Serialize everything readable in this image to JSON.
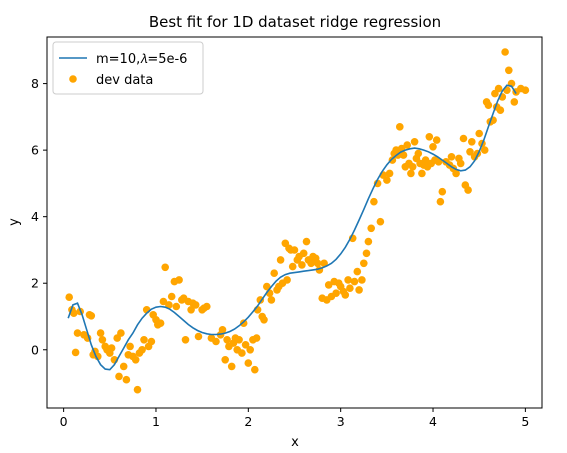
{
  "chart_data": {
    "type": "scatter",
    "title": "Best fit for 1D dataset ridge regression",
    "xlabel": "x",
    "ylabel": "y",
    "xlim": [
      -0.18,
      5.18
    ],
    "ylim": [
      -1.75,
      9.4
    ],
    "xticks": [
      0,
      1,
      2,
      3,
      4,
      5
    ],
    "yticks": [
      0,
      2,
      4,
      6,
      8
    ],
    "grid": false,
    "legend_position": "top-left",
    "colors": {
      "line": "#1f77b4",
      "points": "#ffa500"
    },
    "series": [
      {
        "name": "m=10,𝜆=5e-6",
        "kind": "line",
        "x": [
          0.05,
          0.1,
          0.15,
          0.2,
          0.25,
          0.3,
          0.35,
          0.4,
          0.45,
          0.5,
          0.55,
          0.6,
          0.65,
          0.7,
          0.75,
          0.8,
          0.85,
          0.9,
          0.95,
          1.0,
          1.05,
          1.1,
          1.15,
          1.2,
          1.25,
          1.3,
          1.35,
          1.4,
          1.45,
          1.5,
          1.55,
          1.6,
          1.65,
          1.7,
          1.75,
          1.8,
          1.85,
          1.9,
          1.95,
          2.0,
          2.05,
          2.1,
          2.15,
          2.2,
          2.25,
          2.3,
          2.35,
          2.4,
          2.45,
          2.5,
          2.55,
          2.6,
          2.65,
          2.7,
          2.75,
          2.8,
          2.85,
          2.9,
          2.95,
          3.0,
          3.05,
          3.1,
          3.15,
          3.2,
          3.25,
          3.3,
          3.35,
          3.4,
          3.45,
          3.5,
          3.55,
          3.6,
          3.65,
          3.7,
          3.75,
          3.8,
          3.85,
          3.9,
          3.95,
          4.0,
          4.05,
          4.1,
          4.15,
          4.2,
          4.25,
          4.3,
          4.35,
          4.4,
          4.45,
          4.5,
          4.55,
          4.6,
          4.65,
          4.7,
          4.75,
          4.8,
          4.85,
          4.9
        ],
        "y": [
          0.95,
          1.35,
          1.4,
          1.05,
          0.6,
          0.15,
          -0.2,
          -0.45,
          -0.58,
          -0.6,
          -0.45,
          -0.2,
          0.05,
          0.3,
          0.5,
          0.75,
          0.95,
          1.1,
          1.22,
          1.28,
          1.3,
          1.28,
          1.22,
          1.12,
          1.0,
          0.88,
          0.76,
          0.66,
          0.58,
          0.52,
          0.48,
          0.46,
          0.46,
          0.47,
          0.5,
          0.55,
          0.62,
          0.72,
          0.84,
          0.98,
          1.14,
          1.32,
          1.52,
          1.72,
          1.9,
          2.06,
          2.18,
          2.26,
          2.3,
          2.32,
          2.34,
          2.36,
          2.38,
          2.4,
          2.42,
          2.46,
          2.52,
          2.6,
          2.72,
          2.88,
          3.08,
          3.32,
          3.6,
          3.9,
          4.22,
          4.54,
          4.84,
          5.12,
          5.36,
          5.56,
          5.72,
          5.84,
          5.94,
          6.0,
          6.04,
          6.06,
          6.04,
          6.0,
          5.95,
          5.88,
          5.8,
          5.7,
          5.6,
          5.5,
          5.42,
          5.38,
          5.4,
          5.5,
          5.68,
          5.96,
          6.3,
          6.7,
          7.1,
          7.48,
          7.78,
          7.95,
          7.92,
          7.7
        ]
      },
      {
        "name": "dev data",
        "kind": "scatter",
        "points": [
          [
            0.06,
            1.58
          ],
          [
            0.09,
            1.2
          ],
          [
            0.11,
            1.1
          ],
          [
            0.13,
            -0.08
          ],
          [
            0.15,
            0.5
          ],
          [
            0.18,
            1.15
          ],
          [
            0.22,
            0.45
          ],
          [
            0.26,
            0.35
          ],
          [
            0.28,
            1.05
          ],
          [
            0.3,
            1.02
          ],
          [
            0.32,
            -0.15
          ],
          [
            0.34,
            -0.05
          ],
          [
            0.37,
            -0.2
          ],
          [
            0.4,
            0.5
          ],
          [
            0.42,
            0.3
          ],
          [
            0.45,
            0.1
          ],
          [
            0.47,
            0.0
          ],
          [
            0.5,
            -0.1
          ],
          [
            0.52,
            0.05
          ],
          [
            0.55,
            -0.3
          ],
          [
            0.58,
            0.35
          ],
          [
            0.6,
            -0.8
          ],
          [
            0.62,
            0.5
          ],
          [
            0.65,
            -0.5
          ],
          [
            0.68,
            -0.9
          ],
          [
            0.7,
            -0.15
          ],
          [
            0.72,
            0.1
          ],
          [
            0.75,
            -0.2
          ],
          [
            0.78,
            -0.3
          ],
          [
            0.8,
            -1.2
          ],
          [
            0.82,
            -0.1
          ],
          [
            0.85,
            0.0
          ],
          [
            0.87,
            0.3
          ],
          [
            0.9,
            1.2
          ],
          [
            0.92,
            0.1
          ],
          [
            0.95,
            0.25
          ],
          [
            0.97,
            1.05
          ],
          [
            1.0,
            0.9
          ],
          [
            1.02,
            0.75
          ],
          [
            1.05,
            0.8
          ],
          [
            1.08,
            1.45
          ],
          [
            1.1,
            2.48
          ],
          [
            1.14,
            1.35
          ],
          [
            1.17,
            1.6
          ],
          [
            1.2,
            2.05
          ],
          [
            1.22,
            1.3
          ],
          [
            1.25,
            2.1
          ],
          [
            1.28,
            1.5
          ],
          [
            1.3,
            1.55
          ],
          [
            1.32,
            0.3
          ],
          [
            1.35,
            1.45
          ],
          [
            1.38,
            1.2
          ],
          [
            1.4,
            1.4
          ],
          [
            1.43,
            1.35
          ],
          [
            1.46,
            0.4
          ],
          [
            1.5,
            1.2
          ],
          [
            1.52,
            1.25
          ],
          [
            1.55,
            1.3
          ],
          [
            1.6,
            0.35
          ],
          [
            1.65,
            0.25
          ],
          [
            1.7,
            0.45
          ],
          [
            1.72,
            0.6
          ],
          [
            1.75,
            -0.3
          ],
          [
            1.77,
            0.3
          ],
          [
            1.79,
            0.1
          ],
          [
            1.82,
            -0.5
          ],
          [
            1.84,
            0.2
          ],
          [
            1.86,
            0.35
          ],
          [
            1.88,
            0.0
          ],
          [
            1.9,
            0.3
          ],
          [
            1.93,
            -0.1
          ],
          [
            1.95,
            0.8
          ],
          [
            1.97,
            0.15
          ],
          [
            2.0,
            -0.4
          ],
          [
            2.02,
            0.0
          ],
          [
            2.05,
            0.3
          ],
          [
            2.07,
            -0.6
          ],
          [
            2.09,
            0.35
          ],
          [
            2.1,
            1.2
          ],
          [
            2.13,
            1.5
          ],
          [
            2.15,
            1.0
          ],
          [
            2.17,
            0.9
          ],
          [
            2.2,
            1.9
          ],
          [
            2.23,
            1.7
          ],
          [
            2.25,
            1.5
          ],
          [
            2.28,
            2.3
          ],
          [
            2.31,
            1.8
          ],
          [
            2.33,
            1.9
          ],
          [
            2.35,
            2.7
          ],
          [
            2.37,
            2.0
          ],
          [
            2.4,
            3.2
          ],
          [
            2.42,
            2.1
          ],
          [
            2.44,
            3.05
          ],
          [
            2.46,
            3.0
          ],
          [
            2.48,
            2.5
          ],
          [
            2.5,
            3.0
          ],
          [
            2.53,
            2.7
          ],
          [
            2.55,
            2.8
          ],
          [
            2.58,
            2.55
          ],
          [
            2.6,
            2.9
          ],
          [
            2.63,
            3.25
          ],
          [
            2.65,
            2.7
          ],
          [
            2.68,
            2.6
          ],
          [
            2.7,
            2.8
          ],
          [
            2.73,
            2.75
          ],
          [
            2.75,
            2.6
          ],
          [
            2.77,
            2.4
          ],
          [
            2.8,
            1.55
          ],
          [
            2.82,
            2.6
          ],
          [
            2.85,
            1.5
          ],
          [
            2.87,
            1.95
          ],
          [
            2.9,
            1.6
          ],
          [
            2.93,
            2.05
          ],
          [
            2.95,
            1.7
          ],
          [
            2.98,
            2.0
          ],
          [
            3.0,
            1.9
          ],
          [
            3.03,
            1.75
          ],
          [
            3.05,
            1.65
          ],
          [
            3.08,
            2.1
          ],
          [
            3.1,
            1.85
          ],
          [
            3.13,
            3.35
          ],
          [
            3.15,
            2.05
          ],
          [
            3.18,
            2.35
          ],
          [
            3.2,
            1.8
          ],
          [
            3.23,
            2.1
          ],
          [
            3.25,
            2.6
          ],
          [
            3.28,
            2.9
          ],
          [
            3.3,
            3.25
          ],
          [
            3.33,
            3.65
          ],
          [
            3.36,
            4.45
          ],
          [
            3.4,
            5.0
          ],
          [
            3.43,
            3.85
          ],
          [
            3.46,
            5.25
          ],
          [
            3.5,
            5.1
          ],
          [
            3.53,
            5.3
          ],
          [
            3.56,
            5.7
          ],
          [
            3.58,
            5.9
          ],
          [
            3.6,
            6.0
          ],
          [
            3.62,
            5.85
          ],
          [
            3.64,
            6.7
          ],
          [
            3.66,
            6.05
          ],
          [
            3.68,
            5.85
          ],
          [
            3.7,
            5.5
          ],
          [
            3.72,
            6.15
          ],
          [
            3.74,
            5.6
          ],
          [
            3.76,
            5.3
          ],
          [
            3.78,
            5.5
          ],
          [
            3.8,
            6.25
          ],
          [
            3.82,
            5.75
          ],
          [
            3.84,
            5.9
          ],
          [
            3.86,
            5.6
          ],
          [
            3.88,
            5.3
          ],
          [
            3.9,
            5.55
          ],
          [
            3.92,
            5.7
          ],
          [
            3.94,
            5.5
          ],
          [
            3.96,
            6.4
          ],
          [
            3.98,
            5.6
          ],
          [
            4.0,
            6.1
          ],
          [
            4.02,
            5.7
          ],
          [
            4.04,
            6.3
          ],
          [
            4.06,
            5.65
          ],
          [
            4.08,
            4.45
          ],
          [
            4.1,
            4.75
          ],
          [
            4.14,
            5.65
          ],
          [
            4.18,
            5.55
          ],
          [
            4.2,
            5.8
          ],
          [
            4.22,
            5.45
          ],
          [
            4.25,
            5.3
          ],
          [
            4.28,
            5.75
          ],
          [
            4.3,
            5.6
          ],
          [
            4.33,
            6.35
          ],
          [
            4.35,
            4.95
          ],
          [
            4.38,
            4.8
          ],
          [
            4.4,
            5.95
          ],
          [
            4.42,
            6.25
          ],
          [
            4.45,
            5.8
          ],
          [
            4.48,
            5.9
          ],
          [
            4.5,
            6.5
          ],
          [
            4.53,
            6.2
          ],
          [
            4.56,
            6.0
          ],
          [
            4.58,
            7.45
          ],
          [
            4.6,
            7.35
          ],
          [
            4.62,
            6.85
          ],
          [
            4.65,
            6.9
          ],
          [
            4.67,
            7.7
          ],
          [
            4.69,
            7.3
          ],
          [
            4.71,
            7.85
          ],
          [
            4.73,
            7.2
          ],
          [
            4.75,
            7.6
          ],
          [
            4.78,
            8.95
          ],
          [
            4.8,
            7.8
          ],
          [
            4.82,
            8.4
          ],
          [
            4.85,
            8.0
          ],
          [
            4.88,
            7.45
          ],
          [
            4.9,
            7.75
          ],
          [
            4.95,
            7.85
          ],
          [
            5.0,
            7.8
          ]
        ]
      }
    ]
  }
}
